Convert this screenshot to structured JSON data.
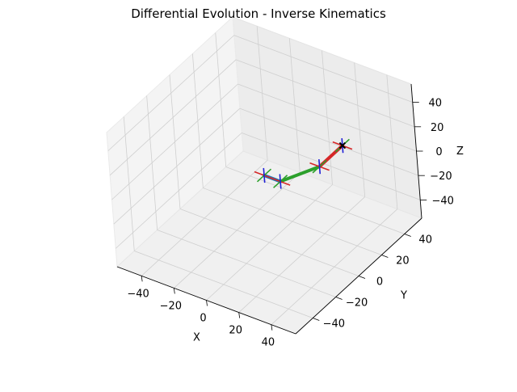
{
  "chart_data": {
    "type": "line3d",
    "title": "Differential Evolution - Inverse Kinematics",
    "xlabel": "X",
    "ylabel": "Y",
    "zlabel": "Z",
    "xlim": [
      -55,
      55
    ],
    "ylim": [
      -55,
      55
    ],
    "zlim": [
      -55,
      55
    ],
    "x_ticks": [
      "−40",
      "−20",
      "0",
      "20",
      "40"
    ],
    "y_ticks": [
      "−40",
      "−20",
      "0",
      "20",
      "40"
    ],
    "z_ticks": [
      "−40",
      "−20",
      "0",
      "20",
      "40"
    ],
    "grid": true,
    "series": [
      {
        "color": "#1f77b4",
        "points": [
          [
            0,
            0,
            0
          ],
          [
            10,
            0,
            0
          ]
        ]
      },
      {
        "color": "#2ca02c",
        "points": [
          [
            10,
            0,
            0
          ],
          [
            20,
            20,
            0
          ]
        ]
      },
      {
        "color": "#d62728",
        "points": [
          [
            20,
            20,
            0
          ],
          [
            20,
            40,
            0
          ]
        ]
      }
    ],
    "frame_colors": {
      "x": "#d62728",
      "y": "#2ca02c",
      "z": "#1f1fd6"
    },
    "target": {
      "point": [
        20,
        40,
        0
      ],
      "color": "#000000",
      "marker": "x"
    }
  }
}
